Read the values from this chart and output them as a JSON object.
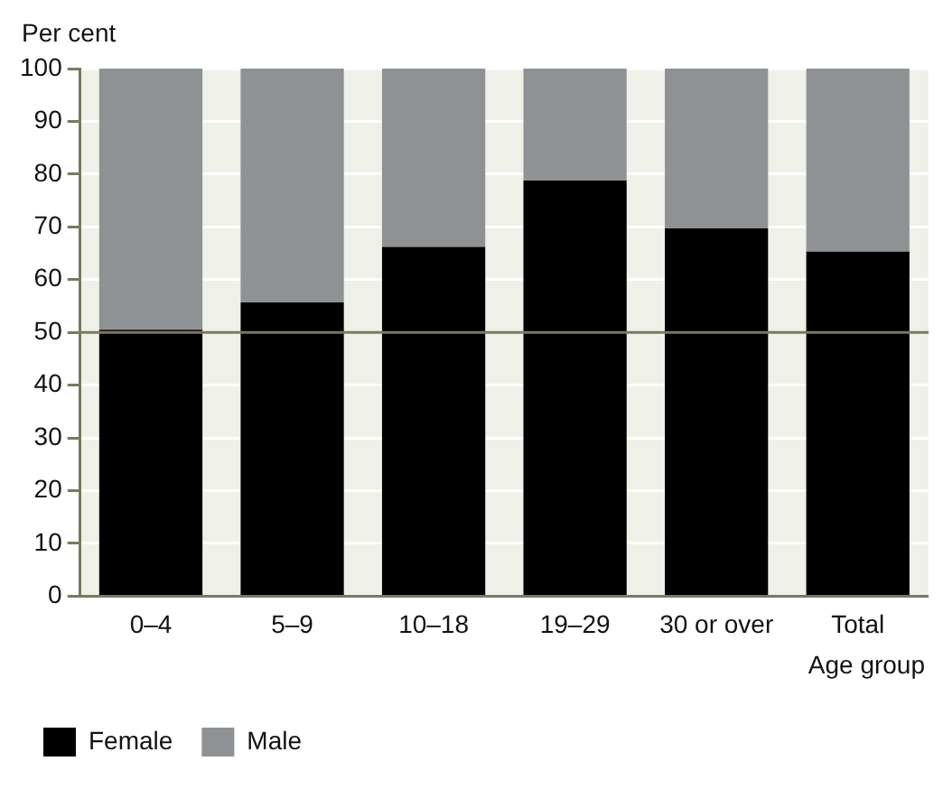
{
  "chart_data": {
    "type": "bar",
    "ylabel": "Per cent",
    "xlabel": "Age group",
    "categories": [
      "0–4",
      "5–9",
      "10–18",
      "19–29",
      "30 or over",
      "Total"
    ],
    "series": [
      {
        "name": "Female",
        "color": "#000000",
        "values": [
          50.5,
          55.7,
          66.2,
          78.8,
          69.7,
          65.3
        ]
      },
      {
        "name": "Male",
        "color": "#8f9295",
        "values": [
          49.5,
          44.3,
          33.8,
          21.2,
          30.3,
          34.7
        ]
      }
    ],
    "stacked": true,
    "ylim": [
      0,
      100
    ],
    "yticks": [
      0,
      10,
      20,
      30,
      40,
      50,
      60,
      70,
      80,
      90,
      100
    ],
    "grid": "y",
    "legend": "bottom left",
    "ref_lines": [
      {
        "axis": "y",
        "value": 50,
        "color": "#7a7860"
      }
    ]
  }
}
